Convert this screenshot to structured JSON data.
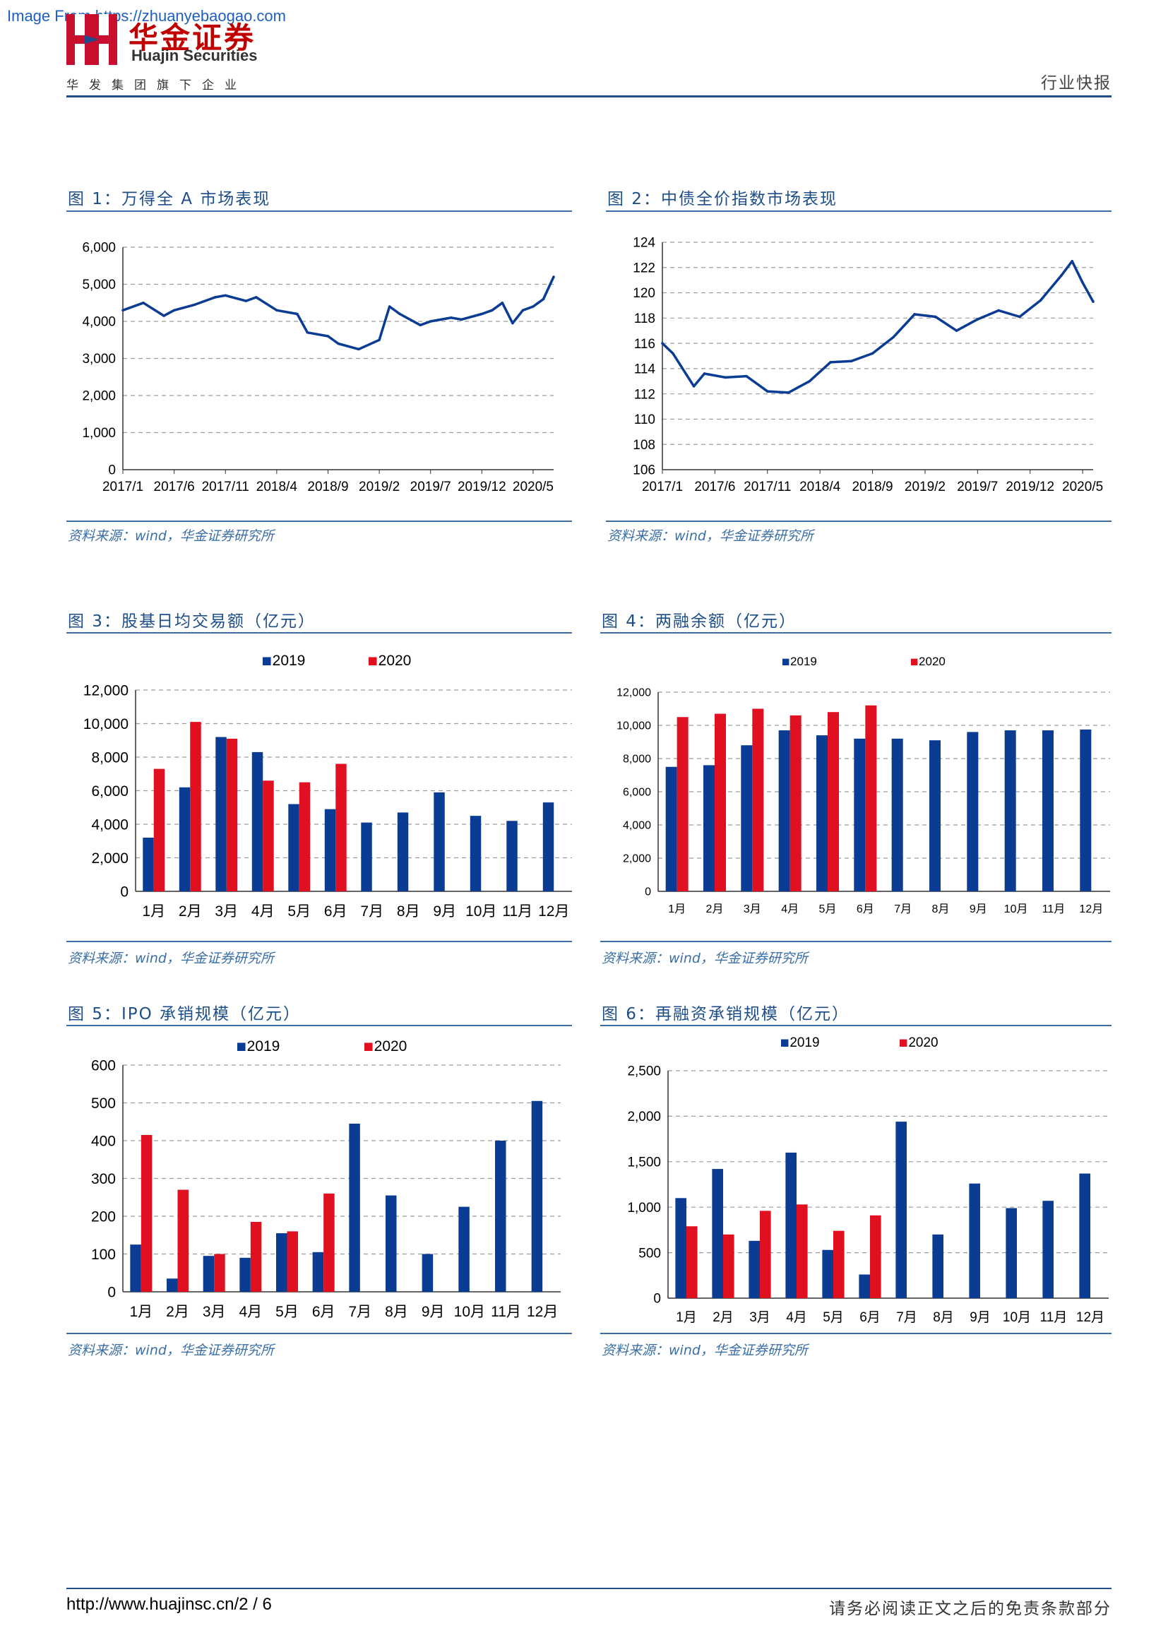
{
  "watermark": "Image From https://zhuanyebaogao.com",
  "header": {
    "brand_cn": "华金证券",
    "brand_en": "Huajin Securities",
    "tagline": "华发集团旗下企业",
    "report_type": "行业快报"
  },
  "colors": {
    "blue": "#0b3c93",
    "red": "#e01020",
    "accent": "#1d4e89"
  },
  "figures": [
    {
      "title": "图 1：万得全 A 市场表现",
      "source": "资料来源：wind，华金证券研究所"
    },
    {
      "title": "图 2：中债全价指数市场表现",
      "source": "资料来源：wind，华金证券研究所"
    },
    {
      "title": "图 3：股基日均交易额（亿元）",
      "source": "资料来源：wind，华金证券研究所"
    },
    {
      "title": "图 4：两融余额（亿元）",
      "source": "资料来源：wind，华金证券研究所"
    },
    {
      "title": "图 5：IPO 承销规模（亿元）",
      "source": "资料来源：wind，华金证券研究所"
    },
    {
      "title": "图 6：再融资承销规模（亿元）",
      "source": "资料来源：wind，华金证券研究所"
    }
  ],
  "chart_data": [
    {
      "type": "line",
      "series_color": "#0b3c93",
      "x_tick_labels": [
        "2017/1",
        "2017/6",
        "2017/11",
        "2018/4",
        "2018/9",
        "2019/2",
        "2019/7",
        "2019/12",
        "2020/5"
      ],
      "y_tick_labels": [
        "0",
        "1,000",
        "2,000",
        "3,000",
        "4,000",
        "5,000",
        "6,000"
      ],
      "ylim": [
        0,
        6000
      ],
      "grid": "horizontal dashed",
      "x": [
        "2017/1",
        "2017/3",
        "2017/5",
        "2017/6",
        "2017/8",
        "2017/10",
        "2017/11",
        "2018/1",
        "2018/2",
        "2018/4",
        "2018/6",
        "2018/7",
        "2018/9",
        "2018/10",
        "2018/12",
        "2019/2",
        "2019/3",
        "2019/4",
        "2019/6",
        "2019/7",
        "2019/9",
        "2019/10",
        "2019/12",
        "2020/1",
        "2020/2",
        "2020/3",
        "2020/4",
        "2020/5",
        "2020/6",
        "2020/7"
      ],
      "values": [
        4300,
        4500,
        4150,
        4300,
        4450,
        4650,
        4700,
        4550,
        4650,
        4300,
        4200,
        3700,
        3600,
        3400,
        3250,
        3500,
        4400,
        4200,
        3900,
        4000,
        4100,
        4050,
        4200,
        4300,
        4500,
        3950,
        4300,
        4400,
        4600,
        5200
      ]
    },
    {
      "type": "line",
      "series_color": "#0b3c93",
      "x_tick_labels": [
        "2017/1",
        "2017/6",
        "2017/11",
        "2018/4",
        "2018/9",
        "2019/2",
        "2019/7",
        "2019/12",
        "2020/5"
      ],
      "y_tick_labels": [
        "106",
        "108",
        "110",
        "112",
        "114",
        "116",
        "118",
        "120",
        "122",
        "124"
      ],
      "ylim": [
        106,
        124
      ],
      "grid": "horizontal dashed",
      "x": [
        "2017/1",
        "2017/2",
        "2017/4",
        "2017/5",
        "2017/7",
        "2017/9",
        "2017/11",
        "2018/1",
        "2018/3",
        "2018/5",
        "2018/7",
        "2018/9",
        "2018/11",
        "2019/1",
        "2019/3",
        "2019/5",
        "2019/7",
        "2019/9",
        "2019/11",
        "2020/1",
        "2020/3",
        "2020/4",
        "2020/5",
        "2020/6"
      ],
      "values": [
        116.0,
        115.2,
        112.6,
        113.6,
        113.3,
        113.4,
        112.2,
        112.1,
        113.0,
        114.5,
        114.6,
        115.2,
        116.5,
        118.3,
        118.1,
        117.0,
        117.9,
        118.6,
        118.1,
        119.4,
        121.4,
        122.5,
        120.8,
        119.3
      ]
    },
    {
      "type": "bar",
      "categories": [
        "1月",
        "2月",
        "3月",
        "4月",
        "5月",
        "6月",
        "7月",
        "8月",
        "9月",
        "10月",
        "11月",
        "12月"
      ],
      "y_tick_labels": [
        "0",
        "2,000",
        "4,000",
        "6,000",
        "8,000",
        "10,000",
        "12,000"
      ],
      "ylim": [
        0,
        12000
      ],
      "legend_position": "top",
      "series": [
        {
          "name": "2019",
          "color": "#0b3c93",
          "values": [
            3200,
            6200,
            9200,
            8300,
            5200,
            4900,
            4100,
            4700,
            5900,
            4500,
            4200,
            5300
          ]
        },
        {
          "name": "2020",
          "color": "#e01020",
          "values": [
            7300,
            10100,
            9100,
            6600,
            6500,
            7600,
            null,
            null,
            null,
            null,
            null,
            null
          ]
        }
      ]
    },
    {
      "type": "bar",
      "categories": [
        "1月",
        "2月",
        "3月",
        "4月",
        "5月",
        "6月",
        "7月",
        "8月",
        "9月",
        "10月",
        "11月",
        "12月"
      ],
      "y_tick_labels": [
        "0",
        "2,000",
        "4,000",
        "6,000",
        "8,000",
        "10,000",
        "12,000"
      ],
      "ylim": [
        0,
        12000
      ],
      "legend_position": "top",
      "series": [
        {
          "name": "2019",
          "color": "#0b3c93",
          "values": [
            7500,
            7600,
            8800,
            9700,
            9400,
            9200,
            9200,
            9100,
            9600,
            9700,
            9700,
            9750
          ]
        },
        {
          "name": "2020",
          "color": "#e01020",
          "values": [
            10500,
            10700,
            11000,
            10600,
            10800,
            11200,
            null,
            null,
            null,
            null,
            null,
            null
          ]
        }
      ]
    },
    {
      "type": "bar",
      "categories": [
        "1月",
        "2月",
        "3月",
        "4月",
        "5月",
        "6月",
        "7月",
        "8月",
        "9月",
        "10月",
        "11月",
        "12月"
      ],
      "y_tick_labels": [
        "0",
        "100",
        "200",
        "300",
        "400",
        "500",
        "600"
      ],
      "ylim": [
        0,
        600
      ],
      "legend_position": "top",
      "series": [
        {
          "name": "2019",
          "color": "#0b3c93",
          "values": [
            125,
            35,
            95,
            90,
            155,
            105,
            445,
            255,
            100,
            225,
            400,
            505
          ]
        },
        {
          "name": "2020",
          "color": "#e01020",
          "values": [
            415,
            270,
            100,
            185,
            160,
            260,
            null,
            null,
            null,
            null,
            null,
            null
          ]
        }
      ]
    },
    {
      "type": "bar",
      "categories": [
        "1月",
        "2月",
        "3月",
        "4月",
        "5月",
        "6月",
        "7月",
        "8月",
        "9月",
        "10月",
        "11月",
        "12月"
      ],
      "y_tick_labels": [
        "0",
        "500",
        "1,000",
        "1,500",
        "2,000",
        "2,500"
      ],
      "ylim": [
        0,
        2500
      ],
      "legend_position": "top",
      "series": [
        {
          "name": "2019",
          "color": "#0b3c93",
          "values": [
            1100,
            1420,
            630,
            1600,
            530,
            260,
            1940,
            700,
            1260,
            990,
            1070,
            1370
          ]
        },
        {
          "name": "2020",
          "color": "#e01020",
          "values": [
            790,
            700,
            960,
            1030,
            740,
            910,
            null,
            null,
            null,
            null,
            null,
            null
          ]
        }
      ]
    }
  ],
  "footer": {
    "url": "http://www.huajinsc.cn/",
    "page": "2 / 6",
    "disclaimer": "请务必阅读正文之后的免责条款部分"
  }
}
